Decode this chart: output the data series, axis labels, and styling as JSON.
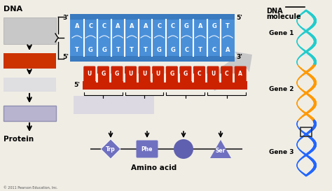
{
  "background_color": "#f0ede5",
  "dna_bases_top": [
    "A",
    "C",
    "C",
    "A",
    "A",
    "A",
    "C",
    "C",
    "G",
    "A",
    "G",
    "T"
  ],
  "dna_bases_bot": [
    "T",
    "G",
    "G",
    "T",
    "T",
    "T",
    "G",
    "G",
    "C",
    "T",
    "C",
    "A"
  ],
  "rna_bases": [
    "U",
    "G",
    "G",
    "U",
    "U",
    "U",
    "G",
    "G",
    "C",
    "U",
    "C",
    "A"
  ],
  "dna_color": "#4a90d9",
  "dna_color_dark": "#3a7abf",
  "rna_color": "#cc2200",
  "rna_tab_color": "#bb1100",
  "amino_color": "#7070c0",
  "amino_color2": "#6060b0",
  "protein_box_color": "#b8b4d0",
  "rna_box_color": "#cc3300",
  "gray_box_color": "#c8c8c8",
  "gray_box2_color": "#d8d8e0",
  "arrow_gray": "#c0c0c0",
  "gene1_color1": "#22cccc",
  "gene1_color2": "#44aaaa",
  "gene2_color": "#ff9900",
  "gene3_color": "#2266ff",
  "gene3_color2": "#1144cc",
  "dna_mol_label": "DNA\nmolecule",
  "gene1_label": "Gene 1",
  "gene2_label": "Gene 2",
  "gene3_label": "Gene 3",
  "amino_labels": [
    "Trp",
    "Phe",
    "",
    "Ser"
  ],
  "amino_acid_label": "Amino acid",
  "protein_label": "Protein",
  "dna_label": "DNA"
}
